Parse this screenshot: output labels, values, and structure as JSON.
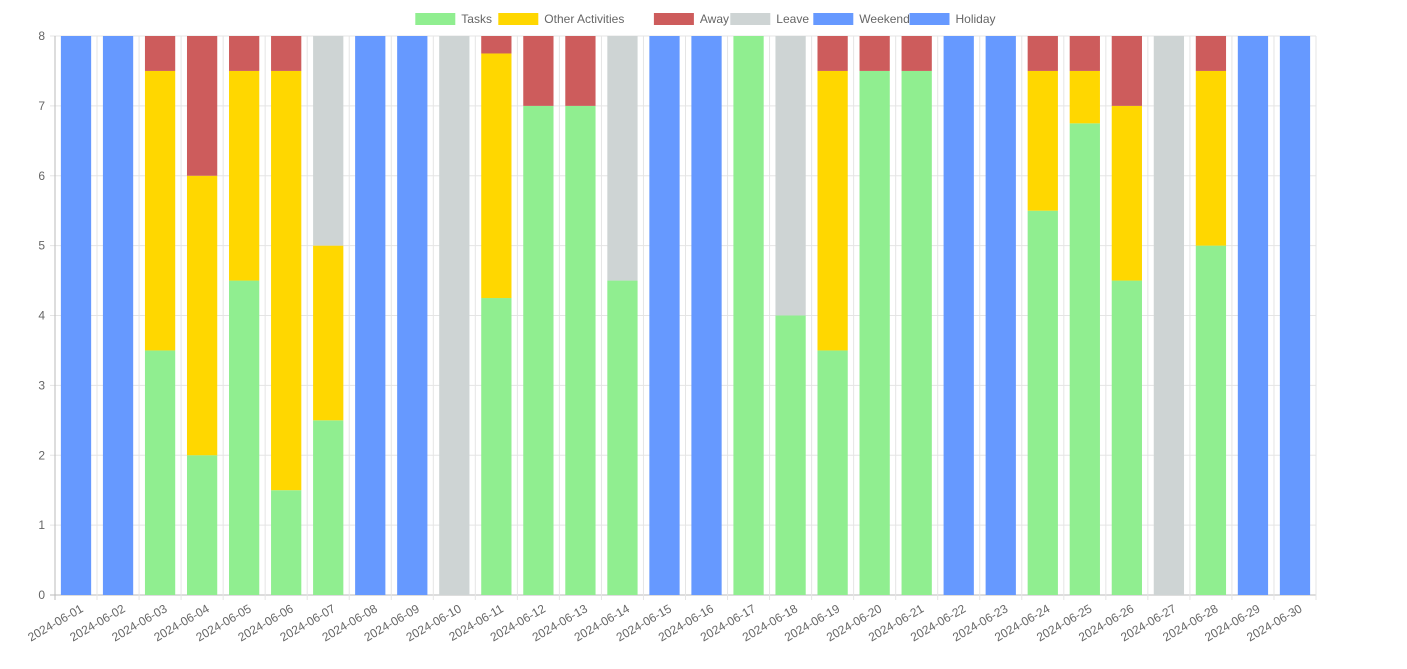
{
  "chart_data": {
    "type": "bar",
    "stacked": true,
    "grid": true,
    "legend_position": "top",
    "ylim": [
      0,
      8
    ],
    "yticks": [
      0,
      1,
      2,
      3,
      4,
      5,
      6,
      7,
      8
    ],
    "categories": [
      "2024-06-01",
      "2024-06-02",
      "2024-06-03",
      "2024-06-04",
      "2024-06-05",
      "2024-06-06",
      "2024-06-07",
      "2024-06-08",
      "2024-06-09",
      "2024-06-10",
      "2024-06-11",
      "2024-06-12",
      "2024-06-13",
      "2024-06-14",
      "2024-06-15",
      "2024-06-16",
      "2024-06-17",
      "2024-06-18",
      "2024-06-19",
      "2024-06-20",
      "2024-06-21",
      "2024-06-22",
      "2024-06-23",
      "2024-06-24",
      "2024-06-25",
      "2024-06-26",
      "2024-06-27",
      "2024-06-28",
      "2024-06-29",
      "2024-06-30"
    ],
    "series": [
      {
        "name": "Tasks",
        "color": "#90ee90",
        "values": [
          0,
          0,
          3.5,
          2,
          4.5,
          1.5,
          2.5,
          0,
          0,
          0,
          4.25,
          7,
          7,
          4.5,
          0,
          0,
          8,
          4,
          3.5,
          7.5,
          7.5,
          0,
          0,
          5.5,
          6.75,
          4.5,
          0,
          5,
          0,
          0
        ]
      },
      {
        "name": "Other Activities",
        "color": "#ffd700",
        "values": [
          0,
          0,
          4,
          4,
          3,
          6,
          2.5,
          0,
          0,
          0,
          3.5,
          0,
          0,
          0,
          0,
          0,
          0,
          0,
          4,
          0,
          0,
          0,
          0,
          2,
          0.75,
          2.5,
          0,
          2.5,
          0,
          0
        ]
      },
      {
        "name": "Away",
        "color": "#cd5c5c",
        "values": [
          0,
          0,
          0.5,
          2,
          0.5,
          0.5,
          0,
          0,
          0,
          0,
          0.25,
          1,
          1,
          0,
          0,
          0,
          0,
          0,
          0.5,
          0.5,
          0.5,
          0,
          0,
          0.5,
          0.5,
          1,
          0,
          0.5,
          0,
          0
        ]
      },
      {
        "name": "Leave",
        "color": "#ced4d4",
        "values": [
          0,
          0,
          0,
          0,
          0,
          0,
          3,
          0,
          0,
          8,
          0,
          0,
          0,
          3.5,
          0,
          0,
          0,
          4,
          0,
          0,
          0,
          0,
          0,
          0,
          0,
          0,
          8,
          0,
          0,
          0
        ]
      },
      {
        "name": "Weekend",
        "color": "#6699ff",
        "values": [
          8,
          8,
          0,
          0,
          0,
          0,
          0,
          8,
          8,
          0,
          0,
          0,
          0,
          0,
          8,
          8,
          0,
          0,
          0,
          0,
          0,
          8,
          8,
          0,
          0,
          0,
          0,
          0,
          8,
          8
        ]
      },
      {
        "name": "Holiday",
        "color": "#6699ff",
        "values": [
          0,
          0,
          0,
          0,
          0,
          0,
          0,
          0,
          0,
          0,
          0,
          0,
          0,
          0,
          0,
          0,
          0,
          0,
          0,
          0,
          0,
          0,
          0,
          0,
          0,
          0,
          0,
          0,
          0,
          0
        ]
      }
    ]
  }
}
